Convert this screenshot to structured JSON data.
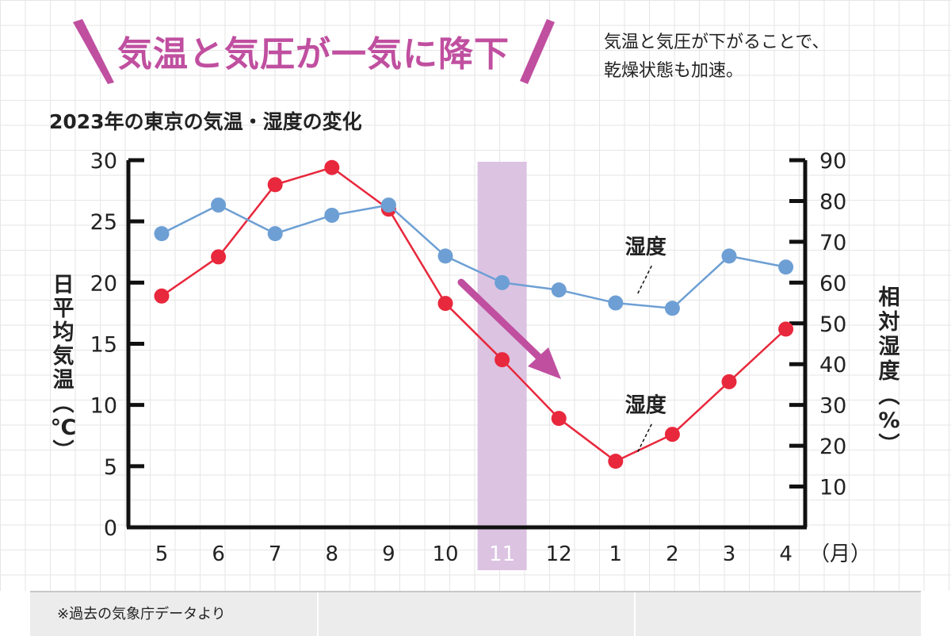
{
  "headline": "気温と気圧が一気に降下",
  "note_lines": [
    "気温と気圧が下がることで、",
    "乾燥状態も加速。"
  ],
  "footer": {
    "source": "※過去の気象庁データより"
  },
  "colors": {
    "temperature": "#e8283c",
    "humidity": "#6d9fd4",
    "highlight": "#dcc3e2",
    "accent": "#c04fa0"
  },
  "chart_data": {
    "type": "line",
    "title": "2023年の東京の気温・湿度の変化",
    "categories": [
      "5",
      "6",
      "7",
      "8",
      "9",
      "10",
      "11",
      "12",
      "1",
      "2",
      "3",
      "4"
    ],
    "x_unit": "（月）",
    "highlight_category": "11",
    "y_left": {
      "label": "日平均気温（℃）",
      "ticks": [
        0,
        5,
        10,
        15,
        20,
        25,
        30
      ],
      "ylim": [
        0,
        30
      ]
    },
    "y_right": {
      "label": "相対湿度（%）",
      "ticks": [
        10,
        20,
        30,
        40,
        50,
        60,
        70,
        80,
        90
      ],
      "ylim": [
        0,
        90
      ]
    },
    "series": [
      {
        "key": "temperature",
        "axis": "left",
        "values": [
          18.9,
          22.1,
          28.0,
          29.4,
          26.0,
          18.3,
          13.7,
          8.9,
          5.4,
          7.6,
          11.9,
          16.2
        ],
        "annotation": {
          "text": "湿度",
          "at_index": 8
        }
      },
      {
        "key": "humidity",
        "axis": "right",
        "values": [
          72,
          79,
          72,
          76.5,
          79,
          66.5,
          60,
          58.2,
          55,
          53.7,
          66.5,
          63.8
        ],
        "annotation": {
          "text": "湿度",
          "at_index": 8
        }
      }
    ],
    "grid": false,
    "legend": "none"
  }
}
